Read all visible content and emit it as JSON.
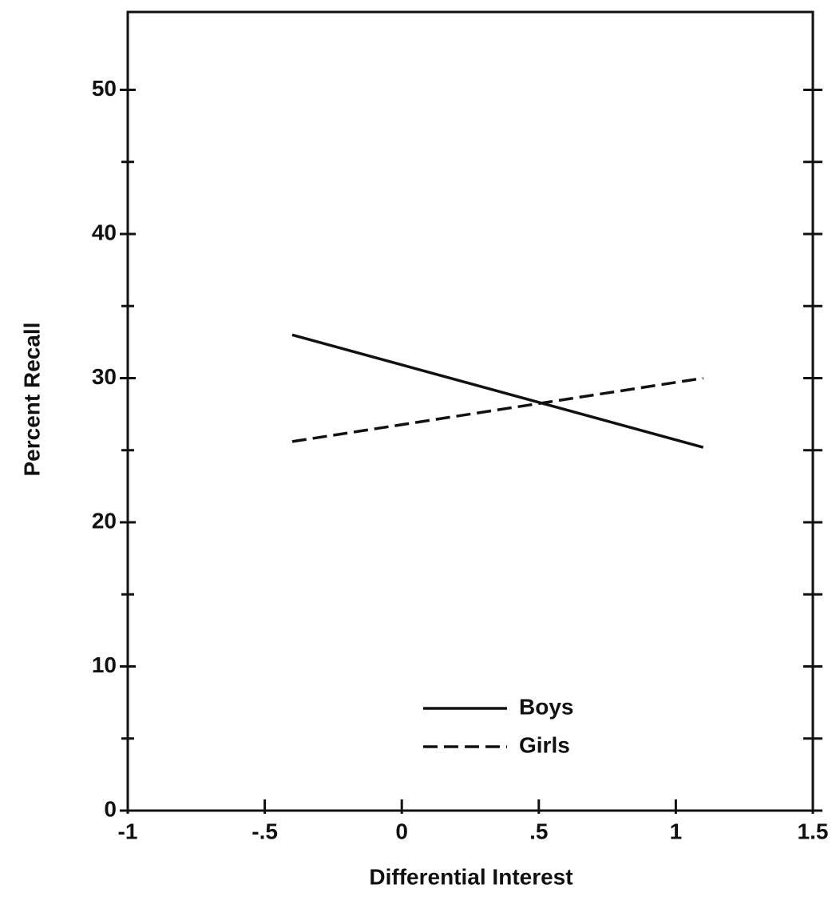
{
  "chart_data": {
    "type": "line",
    "x_label": "Differential Interest",
    "y_label": "Percent Recall",
    "x": [
      -0.4,
      1.1
    ],
    "series": [
      {
        "name": "Boys",
        "color": "#111111",
        "dash": "solid",
        "values": [
          33,
          25.2
        ]
      },
      {
        "name": "Girls",
        "color": "#111111",
        "dash": "dashed",
        "values": [
          25.6,
          30
        ]
      }
    ],
    "xlim": [
      -1,
      1.5
    ],
    "xticks": [
      -1,
      {
        "value": -0.5,
        "label": "-.5"
      },
      0,
      {
        "value": 0.5,
        "label": ".5"
      },
      1,
      1.5
    ],
    "ylim": [
      0,
      55.4
    ],
    "yticks": [
      0,
      10,
      20,
      30,
      40,
      50
    ],
    "yminorticks": [
      5,
      15,
      25,
      35,
      45
    ],
    "legend": "lower center"
  }
}
